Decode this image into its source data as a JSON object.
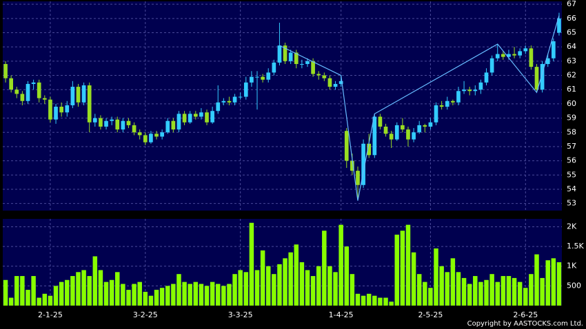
{
  "chart_data": {
    "type": "candlestick",
    "categories": [
      null,
      null,
      null,
      null,
      null,
      null,
      null,
      null,
      "2-1-25",
      null,
      null,
      null,
      null,
      null,
      null,
      null,
      null,
      null,
      null,
      null,
      null,
      null,
      null,
      null,
      null,
      "3-2-25",
      null,
      null,
      null,
      null,
      null,
      null,
      null,
      null,
      null,
      null,
      null,
      null,
      null,
      null,
      null,
      null,
      "3-3-25",
      null,
      null,
      null,
      null,
      null,
      null,
      null,
      null,
      null,
      null,
      null,
      null,
      null,
      null,
      null,
      null,
      null,
      "1-4-25",
      null,
      null,
      null,
      null,
      null,
      null,
      null,
      null,
      null,
      null,
      null,
      null,
      null,
      null,
      null,
      "2-5-25",
      null,
      null,
      null,
      null,
      null,
      null,
      null,
      null,
      null,
      null,
      null,
      null,
      null,
      null,
      null,
      null,
      "2-6-25",
      null,
      null,
      null,
      null,
      null,
      null
    ],
    "open": [
      62.8,
      61.8,
      61.0,
      60.7,
      60.2,
      61.4,
      61.5,
      60.4,
      60.3,
      58.9,
      59.8,
      59.4,
      59.9,
      61.2,
      60.1,
      61.3,
      58.7,
      59.0,
      58.4,
      58.8,
      58.9,
      58.2,
      58.8,
      58.5,
      58.0,
      57.8,
      57.3,
      57.9,
      57.7,
      58.0,
      58.8,
      58.2,
      59.3,
      58.7,
      59.3,
      59.1,
      59.4,
      58.7,
      59.5,
      60.1,
      60.2,
      60.1,
      60.5,
      60.5,
      61.5,
      61.9,
      61.9,
      61.7,
      62.2,
      62.9,
      64.1,
      63.0,
      63.6,
      62.8,
      62.8,
      63.0,
      62.1,
      62.0,
      61.8,
      61.2,
      61.4,
      58.1,
      56.0,
      55.3,
      54.3,
      57.2,
      56.4,
      59.1,
      58.4,
      57.9,
      57.5,
      58.5,
      58.2,
      57.5,
      58.0,
      58.5,
      58.4,
      58.7,
      59.9,
      59.8,
      60.2,
      60.1,
      60.9,
      61.0,
      60.9,
      61.0,
      61.5,
      62.2,
      63.2,
      63.5,
      63.3,
      63.5,
      63.4,
      63.7,
      63.9,
      62.6,
      61.0,
      62.8,
      63.2,
      65.0
    ],
    "high": [
      63.0,
      62.0,
      61.2,
      60.9,
      61.6,
      61.7,
      61.7,
      60.6,
      60.5,
      60.0,
      60.1,
      60.2,
      61.6,
      61.4,
      61.5,
      61.5,
      59.3,
      59.2,
      59.0,
      59.1,
      59.1,
      59.0,
      59.0,
      58.7,
      58.2,
      58.0,
      58.1,
      58.1,
      58.2,
      59.0,
      59.0,
      59.5,
      59.5,
      59.5,
      59.5,
      59.7,
      59.6,
      59.8,
      61.3,
      60.4,
      60.5,
      60.7,
      60.8,
      61.9,
      62.3,
      62.3,
      62.1,
      62.5,
      63.1,
      65.7,
      64.3,
      63.8,
      63.8,
      63.1,
      63.2,
      63.2,
      62.3,
      62.2,
      62.0,
      61.6,
      62.0,
      58.3,
      56.5,
      55.6,
      57.5,
      57.9,
      59.3,
      59.3,
      58.6,
      58.1,
      58.7,
      59.0,
      58.4,
      58.3,
      58.8,
      58.6,
      59.0,
      60.1,
      60.2,
      60.5,
      60.3,
      61.2,
      61.6,
      61.2,
      61.3,
      61.7,
      62.5,
      63.4,
      64.2,
      63.7,
      63.8,
      64.0,
      63.9,
      64.1,
      64.1,
      62.8,
      63.0,
      63.5,
      64.6,
      66.4
    ],
    "low": [
      61.5,
      60.8,
      60.4,
      59.9,
      60.0,
      61.0,
      60.1,
      60.0,
      58.7,
      58.6,
      59.1,
      59.1,
      59.7,
      59.8,
      59.9,
      58.0,
      58.4,
      58.2,
      58.2,
      58.5,
      58.0,
      58.0,
      58.3,
      57.8,
      57.5,
      57.1,
      57.2,
      57.5,
      57.5,
      57.9,
      58.0,
      58.0,
      58.5,
      58.6,
      58.9,
      58.9,
      58.5,
      58.6,
      59.3,
      59.9,
      59.9,
      59.9,
      60.3,
      60.3,
      61.2,
      59.6,
      61.5,
      61.5,
      62.0,
      62.7,
      62.8,
      62.8,
      62.5,
      62.5,
      62.6,
      61.9,
      61.7,
      61.6,
      61.0,
      61.0,
      61.2,
      55.5,
      55.0,
      53.2,
      54.1,
      56.2,
      56.2,
      58.2,
      57.7,
      56.9,
      57.4,
      58.0,
      57.0,
      57.3,
      57.9,
      58.0,
      58.2,
      58.5,
      59.6,
      59.6,
      59.9,
      59.9,
      60.7,
      60.6,
      60.6,
      60.7,
      61.3,
      62.0,
      63.0,
      63.1,
      63.1,
      63.2,
      63.2,
      63.5,
      62.4,
      60.8,
      60.8,
      62.6,
      63.0,
      64.8
    ],
    "close": [
      61.8,
      61.0,
      60.7,
      60.2,
      61.4,
      61.5,
      60.4,
      60.3,
      58.9,
      59.8,
      59.4,
      59.9,
      61.2,
      60.1,
      61.3,
      58.7,
      59.0,
      58.4,
      58.8,
      58.9,
      58.2,
      58.8,
      58.5,
      58.0,
      57.8,
      57.3,
      57.9,
      57.7,
      58.0,
      58.8,
      58.2,
      59.3,
      58.7,
      59.3,
      59.1,
      59.4,
      58.7,
      59.5,
      60.1,
      60.2,
      60.1,
      60.5,
      60.5,
      61.5,
      61.9,
      61.9,
      61.7,
      62.2,
      62.9,
      64.1,
      63.0,
      63.6,
      62.8,
      62.8,
      63.0,
      62.1,
      62.0,
      61.8,
      61.2,
      61.4,
      61.6,
      56.0,
      55.3,
      54.3,
      57.2,
      56.4,
      59.1,
      58.4,
      57.9,
      57.5,
      58.5,
      58.2,
      57.5,
      58.0,
      58.5,
      58.4,
      58.7,
      59.9,
      59.8,
      60.2,
      60.1,
      60.9,
      61.0,
      60.9,
      61.0,
      61.5,
      62.2,
      63.2,
      63.5,
      63.3,
      63.5,
      63.4,
      63.7,
      63.9,
      62.6,
      61.0,
      62.8,
      63.2,
      64.4,
      66.0
    ],
    "volume": [
      650,
      200,
      750,
      750,
      400,
      750,
      200,
      300,
      250,
      500,
      600,
      650,
      750,
      850,
      900,
      750,
      1250,
      900,
      600,
      650,
      850,
      550,
      400,
      550,
      600,
      350,
      250,
      400,
      450,
      500,
      550,
      800,
      600,
      550,
      600,
      550,
      500,
      600,
      550,
      500,
      550,
      800,
      900,
      850,
      2100,
      900,
      1400,
      1000,
      800,
      1050,
      1200,
      1350,
      1550,
      1100,
      900,
      750,
      1000,
      1900,
      1000,
      850,
      2050,
      1500,
      800,
      300,
      250,
      300,
      250,
      200,
      200,
      100,
      1800,
      1900,
      2050,
      1350,
      800,
      600,
      450,
      1450,
      1000,
      850,
      1200,
      850,
      700,
      550,
      750,
      600,
      650,
      800,
      600,
      750,
      750,
      700,
      600,
      450,
      800,
      1300,
      700,
      1150,
      1200,
      1100
    ],
    "up_color": "#33ccff",
    "down_color": "#99dd22",
    "volume_color": "#88ff00",
    "overlay": {
      "x": [
        49,
        60,
        63,
        66,
        88,
        95,
        99
      ],
      "values": [
        64.1,
        62.0,
        53.2,
        59.3,
        64.2,
        60.8,
        66.2
      ],
      "color": "#66bbff"
    },
    "ylim": [
      52.5,
      67.2
    ],
    "yticks": [
      53,
      54,
      55,
      56,
      57,
      58,
      59,
      60,
      61,
      62,
      63,
      64,
      65,
      66,
      67
    ],
    "volume_ylim": [
      0,
      2200
    ],
    "volume_ticks": [
      500,
      {
        "value": 1000,
        "label": "1K"
      },
      {
        "value": 1500,
        "label": "1.5K"
      },
      {
        "value": 2000,
        "label": "2K"
      }
    ],
    "grid": true,
    "copyright": "Copyright by AASTOCKS.com Ltd."
  }
}
